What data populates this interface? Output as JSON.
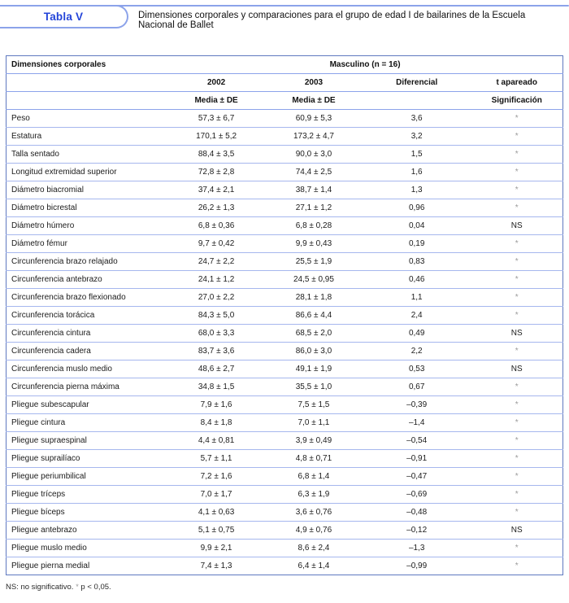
{
  "caption": {
    "label": "Tabla V",
    "text": "Dimensiones corporales y comparaciones para el grupo de edad I de bailarines de la Escuela Nacional de Ballet"
  },
  "colors": {
    "accent_blue": "#2344d9",
    "rule_blue": "#8ca3ea",
    "outer_border_blue": "#5f79c0",
    "row_line_blue": "#a6b7ee",
    "star_gray": "#9b9b9b"
  },
  "table": {
    "group_header": {
      "col1": "Dimensiones corporales",
      "span": "Masculino (n = 16)"
    },
    "year_header": [
      "2002",
      "2003",
      "Diferencial",
      "t apareado"
    ],
    "stat_header": {
      "col2002": "Media ± DE",
      "col2003": "Media ± DE",
      "sig": "Significación"
    },
    "rows": [
      {
        "name": "Peso",
        "y2002": "57,3 ± 6,7",
        "y2003": "60,9 ± 5,3",
        "dif": "3,6",
        "sig": "*"
      },
      {
        "name": "Estatura",
        "y2002": "170,1 ± 5,2",
        "y2003": "173,2 ± 4,7",
        "dif": "3,2",
        "sig": "*"
      },
      {
        "name": "Talla sentado",
        "y2002": "88,4 ± 3,5",
        "y2003": "90,0 ± 3,0",
        "dif": "1,5",
        "sig": "*"
      },
      {
        "name": "Longitud extremidad superior",
        "y2002": "72,8 ± 2,8",
        "y2003": "74,4 ± 2,5",
        "dif": "1,6",
        "sig": "*"
      },
      {
        "name": "Diámetro biacromial",
        "y2002": "37,4 ± 2,1",
        "y2003": "38,7 ± 1,4",
        "dif": "1,3",
        "sig": "*"
      },
      {
        "name": "Diámetro bicrestal",
        "y2002": "26,2 ± 1,3",
        "y2003": "27,1 ± 1,2",
        "dif": "0,96",
        "sig": "*"
      },
      {
        "name": "Diámetro húmero",
        "y2002": "6,8 ± 0,36",
        "y2003": "6,8 ± 0,28",
        "dif": "0,04",
        "sig": "NS"
      },
      {
        "name": "Diámetro fémur",
        "y2002": "9,7 ± 0,42",
        "y2003": "9,9 ± 0,43",
        "dif": "0,19",
        "sig": "*"
      },
      {
        "name": "Circunferencia brazo relajado",
        "y2002": "24,7 ± 2,2",
        "y2003": "25,5 ± 1,9",
        "dif": "0,83",
        "sig": "*"
      },
      {
        "name": "Circunferencia antebrazo",
        "y2002": "24,1 ± 1,2",
        "y2003": "24,5 ± 0,95",
        "dif": "0,46",
        "sig": "*"
      },
      {
        "name": "Circunferencia brazo flexionado",
        "y2002": "27,0 ± 2,2",
        "y2003": "28,1 ± 1,8",
        "dif": "1,1",
        "sig": "*"
      },
      {
        "name": "Circunferencia torácica",
        "y2002": "84,3 ± 5,0",
        "y2003": "86,6 ± 4,4",
        "dif": "2,4",
        "sig": "*"
      },
      {
        "name": "Circunferencia cintura",
        "y2002": "68,0 ± 3,3",
        "y2003": "68,5 ± 2,0",
        "dif": "0,49",
        "sig": "NS"
      },
      {
        "name": "Circunferencia cadera",
        "y2002": "83,7 ± 3,6",
        "y2003": "86,0 ± 3,0",
        "dif": "2,2",
        "sig": "*"
      },
      {
        "name": "Circunferencia muslo medio",
        "y2002": "48,6 ± 2,7",
        "y2003": "49,1 ± 1,9",
        "dif": "0,53",
        "sig": "NS"
      },
      {
        "name": "Circunferencia pierna máxima",
        "y2002": "34,8 ± 1,5",
        "y2003": "35,5 ± 1,0",
        "dif": "0,67",
        "sig": "*"
      },
      {
        "name": "Pliegue subescapular",
        "y2002": "7,9 ± 1,6",
        "y2003": "7,5 ± 1,5",
        "dif": "–0,39",
        "sig": "*"
      },
      {
        "name": "Pliegue cintura",
        "y2002": "8,4 ± 1,8",
        "y2003": "7,0 ± 1,1",
        "dif": "–1,4",
        "sig": "*"
      },
      {
        "name": "Pliegue supraespinal",
        "y2002": "4,4 ± 0,81",
        "y2003": "3,9 ± 0,49",
        "dif": "–0,54",
        "sig": "*"
      },
      {
        "name": "Pliegue suprailíaco",
        "y2002": "5,7 ± 1,1",
        "y2003": "4,8 ± 0,71",
        "dif": "–0,91",
        "sig": "*"
      },
      {
        "name": "Pliegue periumbilical",
        "y2002": "7,2 ± 1,6",
        "y2003": "6,8 ± 1,4",
        "dif": "–0,47",
        "sig": "*"
      },
      {
        "name": "Pliegue tríceps",
        "y2002": "7,0 ± 1,7",
        "y2003": "6,3 ± 1,9",
        "dif": "–0,69",
        "sig": "*"
      },
      {
        "name": "Pliegue bíceps",
        "y2002": "4,1 ± 0,63",
        "y2003": "3,6 ± 0,76",
        "dif": "–0,48",
        "sig": "*"
      },
      {
        "name": "Pliegue antebrazo",
        "y2002": "5,1 ± 0,75",
        "y2003": "4,9 ± 0,76",
        "dif": "–0,12",
        "sig": "NS"
      },
      {
        "name": "Pliegue muslo medio",
        "y2002": "9,9 ± 2,1",
        "y2003": "8,6 ± 2,4",
        "dif": "–1,3",
        "sig": "*"
      },
      {
        "name": "Pliegue pierna medial",
        "y2002": "7,4 ± 1,3",
        "y2003": "6,4 ± 1,4",
        "dif": "–0,99",
        "sig": "*"
      }
    ]
  },
  "footnote": {
    "prefix": "NS: no significativo. ",
    "star": "*",
    "suffix": " p < 0,05."
  }
}
